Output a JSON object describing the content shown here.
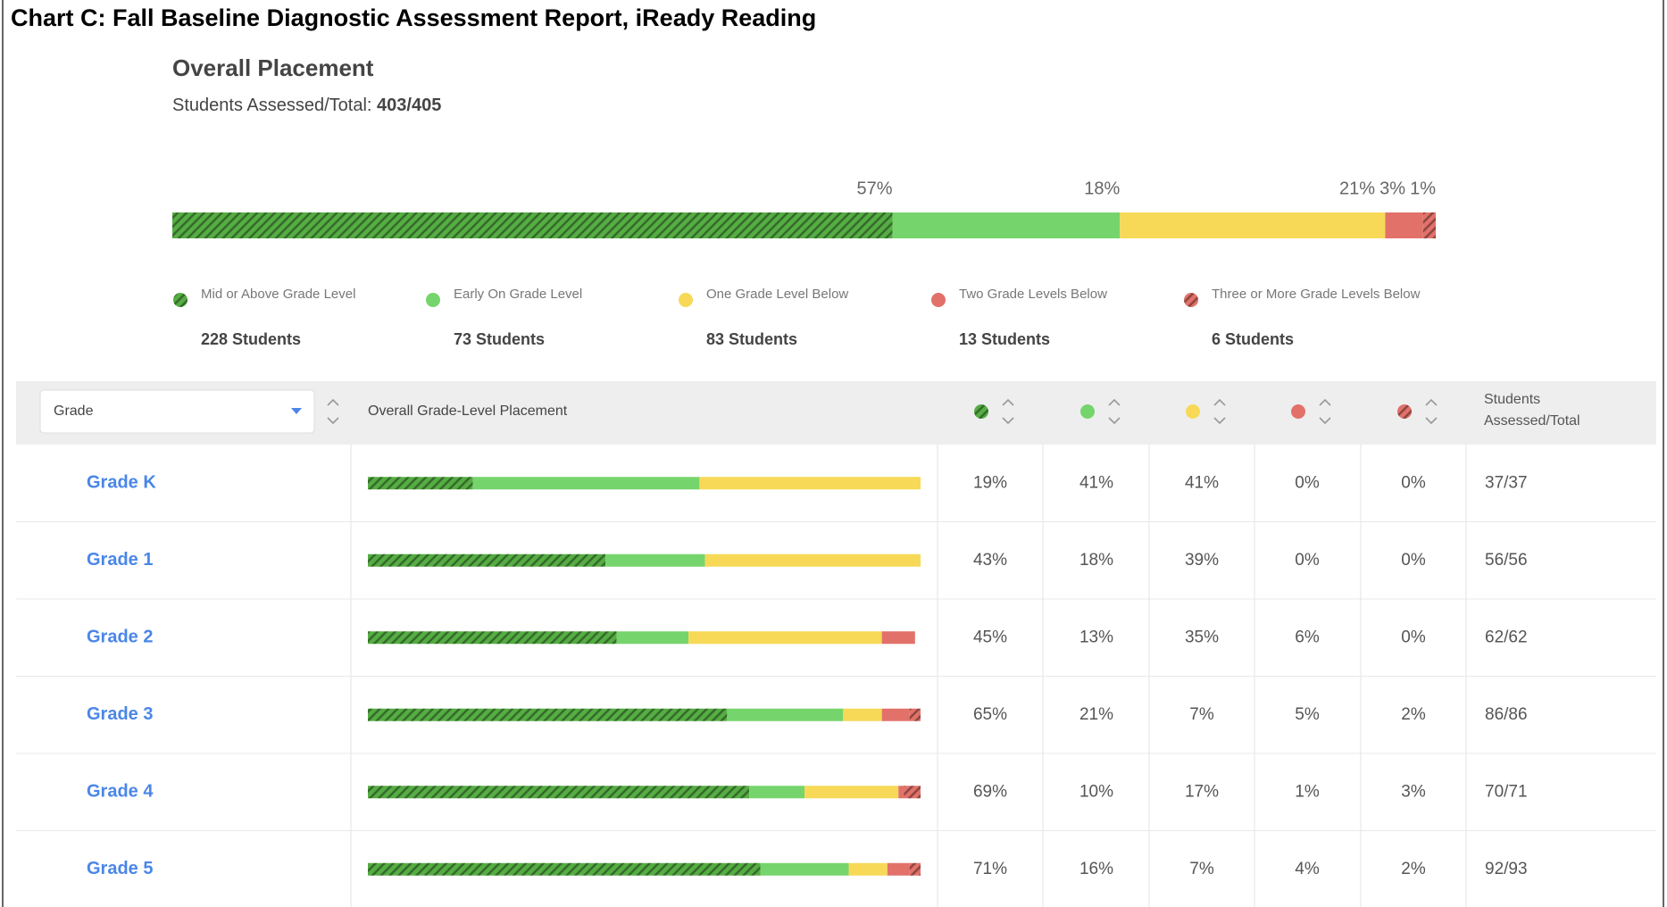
{
  "title": "Chart C: Fall Baseline Diagnostic Assessment Report, iReady Reading",
  "overall": {
    "heading": "Overall Placement",
    "assessed_label": "Students Assessed/Total:",
    "assessed_value": "403/405",
    "segments": [
      {
        "name": "Mid or Above Grade Level",
        "color": "#55ad43",
        "hatch": true,
        "percent": 57,
        "percent_label": "57%",
        "students": "228 Students"
      },
      {
        "name": "Early On Grade Level",
        "color": "#76d46c",
        "hatch": false,
        "percent": 18,
        "percent_label": "18%",
        "students": "73 Students"
      },
      {
        "name": "One Grade Level Below",
        "color": "#f7d957",
        "hatch": false,
        "percent": 21,
        "percent_label": "21%",
        "students": "83 Students"
      },
      {
        "name": "Two Grade Levels Below",
        "color": "#e2716a",
        "hatch": false,
        "percent": 3,
        "percent_label": "3%",
        "students": "13 Students"
      },
      {
        "name": "Three or More Grade Levels Below",
        "color": "#e2716a",
        "hatch": true,
        "percent": 1,
        "percent_label": "1%",
        "students": "6 Students"
      }
    ]
  },
  "table": {
    "dropdown": "Grade",
    "placement_header": "Overall Grade-Level Placement",
    "total_header": "Students Assessed/Total",
    "rows": [
      {
        "grade": "Grade K",
        "values": [
          19,
          41,
          41,
          0,
          0
        ],
        "value_labels": [
          "19%",
          "41%",
          "41%",
          "0%",
          "0%"
        ],
        "total": "37/37"
      },
      {
        "grade": "Grade 1",
        "values": [
          43,
          18,
          39,
          0,
          0
        ],
        "value_labels": [
          "43%",
          "18%",
          "39%",
          "0%",
          "0%"
        ],
        "total": "56/56"
      },
      {
        "grade": "Grade 2",
        "values": [
          45,
          13,
          35,
          6,
          0
        ],
        "value_labels": [
          "45%",
          "13%",
          "35%",
          "6%",
          "0%"
        ],
        "total": "62/62"
      },
      {
        "grade": "Grade 3",
        "values": [
          65,
          21,
          7,
          5,
          2
        ],
        "value_labels": [
          "65%",
          "21%",
          "7%",
          "5%",
          "2%"
        ],
        "total": "86/86"
      },
      {
        "grade": "Grade 4",
        "values": [
          69,
          10,
          17,
          1,
          3
        ],
        "value_labels": [
          "69%",
          "10%",
          "17%",
          "1%",
          "3%"
        ],
        "total": "70/71"
      },
      {
        "grade": "Grade 5",
        "values": [
          71,
          16,
          7,
          4,
          2
        ],
        "value_labels": [
          "71%",
          "16%",
          "7%",
          "4%",
          "2%"
        ],
        "total": "92/93"
      }
    ]
  }
}
